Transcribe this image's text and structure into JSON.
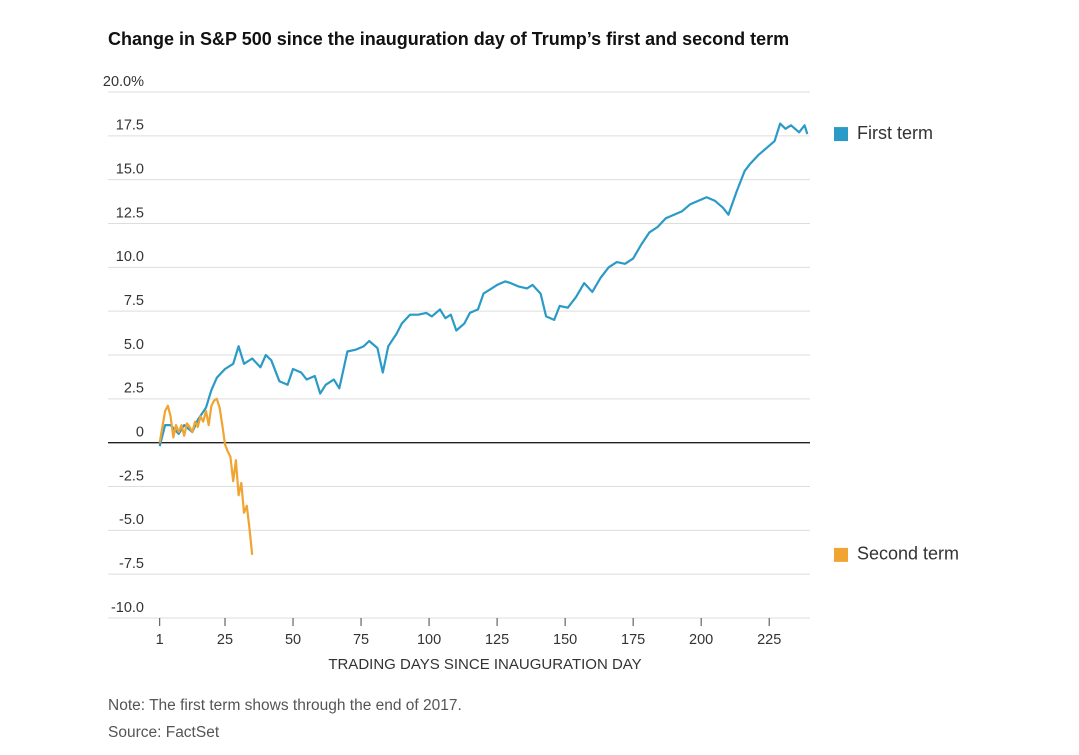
{
  "chart_data": {
    "type": "line",
    "title": "Change in S&P 500 since the inauguration day of Trump’s first and second term",
    "x_label": "TRADING DAYS SINCE INAUGURATION DAY",
    "note": "Note: The first term shows through the end of 2017.",
    "source": "Source: FactSet",
    "xlim": [
      -18,
      240
    ],
    "ylim": [
      -10,
      20
    ],
    "xticks": [
      1,
      25,
      50,
      75,
      100,
      125,
      150,
      175,
      200,
      225
    ],
    "yticks": [
      {
        "value": 20,
        "label": "20.0%"
      },
      17.5,
      {
        "value": 15,
        "label": "15.0"
      },
      {
        "value": 12.5,
        "label": "12.5"
      },
      {
        "value": 10,
        "label": "10.0"
      },
      7.5,
      {
        "value": 5,
        "label": "5.0"
      },
      2.5,
      0,
      -2.5,
      {
        "value": -5,
        "label": "-5.0"
      },
      -7.5,
      {
        "value": -10,
        "label": "-10.0"
      }
    ],
    "grid": true,
    "series": [
      {
        "name": "First term",
        "color": "#2a9ac6",
        "x": [
          1,
          3,
          5,
          8,
          10,
          13,
          15,
          18,
          20,
          22,
          25,
          28,
          30,
          32,
          35,
          38,
          40,
          42,
          45,
          48,
          50,
          53,
          55,
          58,
          60,
          62,
          65,
          67,
          70,
          73,
          76,
          78,
          81,
          83,
          85,
          88,
          90,
          93,
          96,
          99,
          101,
          104,
          106,
          108,
          110,
          113,
          115,
          118,
          120,
          123,
          125,
          128,
          130,
          133,
          136,
          138,
          141,
          143,
          146,
          148,
          151,
          154,
          157,
          160,
          163,
          166,
          169,
          172,
          175,
          178,
          181,
          184,
          187,
          190,
          193,
          196,
          199,
          202,
          205,
          208,
          210,
          213,
          216,
          218,
          221,
          224,
          227,
          229,
          231,
          233,
          236,
          238,
          239
        ],
        "values": [
          -0.2,
          1.0,
          1.0,
          0.5,
          1.0,
          0.6,
          1.3,
          2.0,
          3.0,
          3.7,
          4.2,
          4.5,
          5.5,
          4.5,
          4.8,
          4.3,
          5.0,
          4.7,
          3.5,
          3.3,
          4.2,
          4.0,
          3.6,
          3.8,
          2.8,
          3.3,
          3.6,
          3.1,
          5.2,
          5.3,
          5.5,
          5.8,
          5.4,
          4.0,
          5.5,
          6.2,
          6.8,
          7.3,
          7.3,
          7.4,
          7.2,
          7.6,
          7.1,
          7.3,
          6.4,
          6.8,
          7.4,
          7.6,
          8.5,
          8.8,
          9.0,
          9.2,
          9.1,
          8.9,
          8.8,
          9.0,
          8.5,
          7.2,
          7.0,
          7.8,
          7.7,
          8.3,
          9.1,
          8.6,
          9.4,
          10.0,
          10.3,
          10.2,
          10.5,
          11.3,
          12.0,
          12.3,
          12.8,
          13.0,
          13.2,
          13.6,
          13.8,
          14.0,
          13.8,
          13.4,
          13.0,
          14.3,
          15.5,
          15.9,
          16.4,
          16.8,
          17.2,
          18.2,
          17.9,
          18.1,
          17.7,
          18.1,
          17.6
        ]
      },
      {
        "name": "Second term",
        "color": "#f0a431",
        "x": [
          1,
          2,
          3,
          4,
          5,
          6,
          7,
          8,
          9,
          10,
          11,
          12,
          13,
          14,
          15,
          16,
          17,
          18,
          19,
          20,
          21,
          22,
          23,
          24,
          25,
          26,
          27,
          28,
          29,
          30,
          31,
          32,
          33,
          34,
          35
        ],
        "values": [
          0,
          0.9,
          1.8,
          2.1,
          1.5,
          0.3,
          1.0,
          0.6,
          1.0,
          0.4,
          1.1,
          0.9,
          0.6,
          1.2,
          0.9,
          1.5,
          1.2,
          1.8,
          1.0,
          2.1,
          2.4,
          2.5,
          2.0,
          1.0,
          -0.1,
          -0.5,
          -0.8,
          -2.2,
          -1.0,
          -3.0,
          -2.3,
          -4.0,
          -3.6,
          -4.9,
          -6.4
        ]
      }
    ]
  }
}
